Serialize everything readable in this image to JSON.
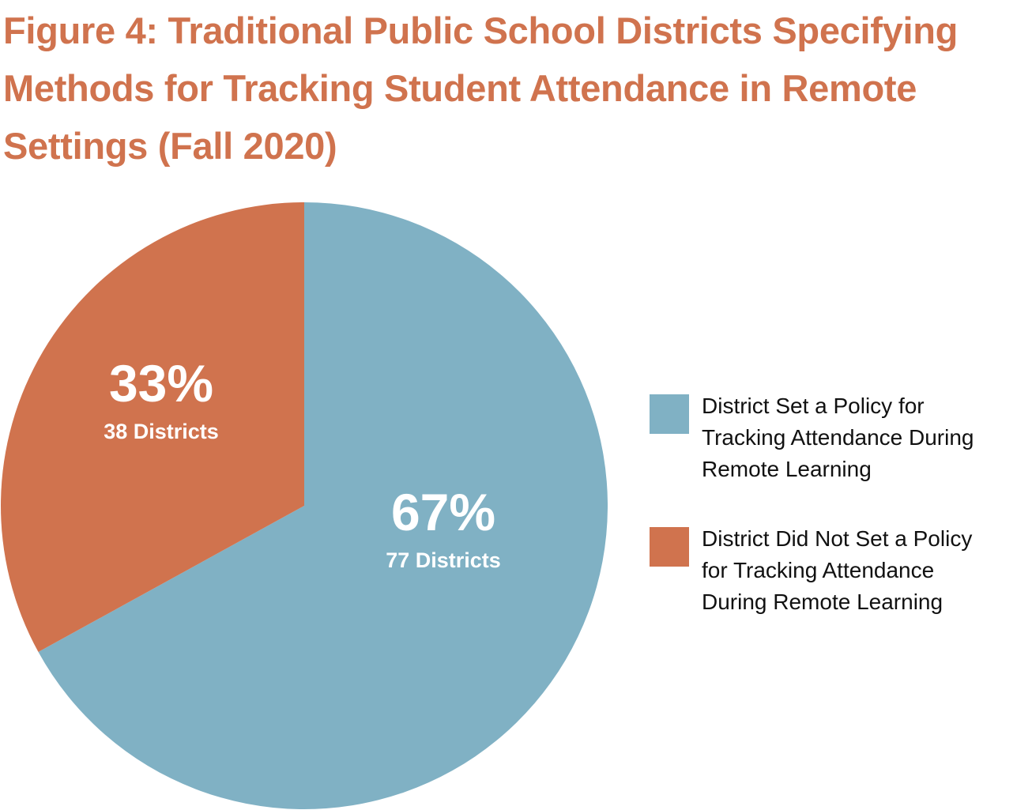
{
  "title": "Figure 4: Traditional Public School Districts Specifying Methods for Tracking Student Attendance in Remote Settings (Fall 2020)",
  "chart_data": {
    "type": "pie",
    "title": "Figure 4: Traditional Public School Districts Specifying Methods for Tracking Student Attendance in Remote Settings (Fall 2020)",
    "series": [
      {
        "name": "District Set a Policy for Tracking Attendance During Remote Learning",
        "value": 67,
        "districts": 77,
        "pct_label": "67%",
        "count_label": "77 Districts",
        "color": "#80b1c4"
      },
      {
        "name": "District Did Not Set a Policy for Tracking Attendance During Remote Learning",
        "value": 33,
        "districts": 38,
        "pct_label": "33%",
        "count_label": "38 Districts",
        "color": "#d0734e"
      }
    ],
    "start_angle_deg": 0,
    "direction": "clockwise",
    "legend_position": "right"
  }
}
